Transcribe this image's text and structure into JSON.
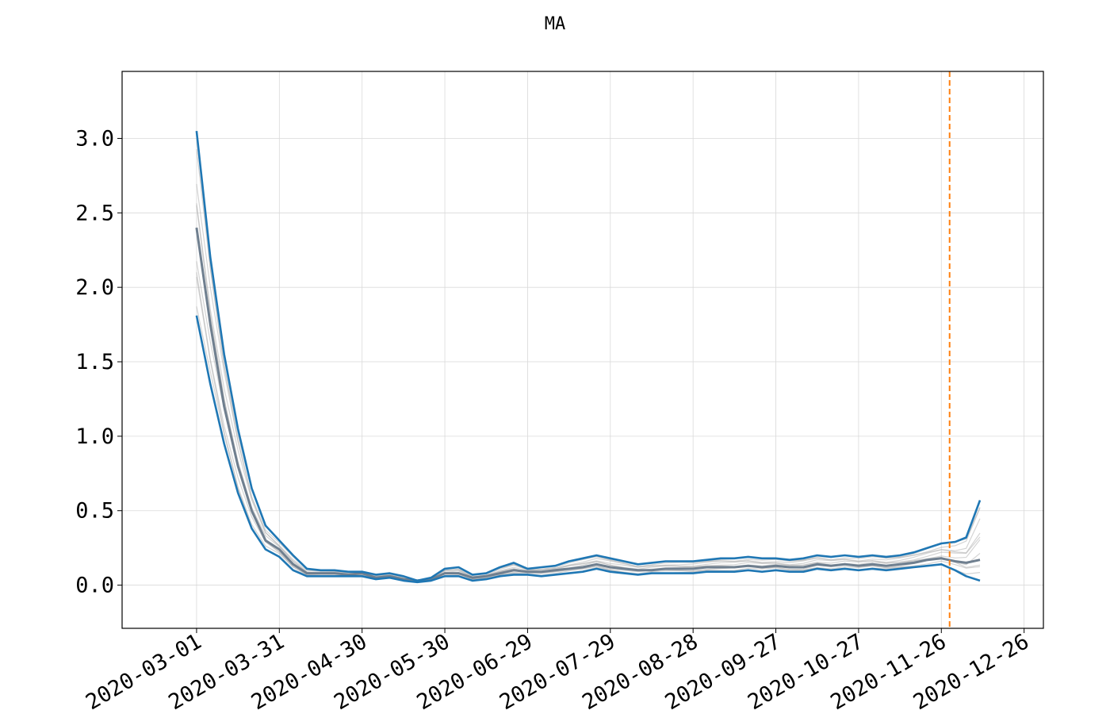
{
  "chart_data": {
    "type": "line",
    "title": "MA",
    "xlabel": "",
    "ylabel": "",
    "ylim": [
      -0.29,
      3.45
    ],
    "grid": true,
    "yticks": [
      "0.0",
      "0.5",
      "1.0",
      "1.5",
      "2.0",
      "2.5",
      "3.0"
    ],
    "xticks": [
      "2020-03-01",
      "2020-03-31",
      "2020-04-30",
      "2020-05-30",
      "2020-06-29",
      "2020-07-29",
      "2020-08-28",
      "2020-09-27",
      "2020-10-27",
      "2020-11-26",
      "2020-12-26"
    ],
    "xlim": [
      "2020-02-03",
      "2021-01-02"
    ],
    "vline": {
      "date": "2020-11-29",
      "color": "#ff7f0e",
      "style": "dashed"
    },
    "colors": {
      "band": "#1f77b4",
      "samples": "#b0b0b0",
      "vline": "#ff7f0e"
    },
    "x": [
      "2020-03-01",
      "2020-03-06",
      "2020-03-11",
      "2020-03-16",
      "2020-03-21",
      "2020-03-26",
      "2020-03-31",
      "2020-04-05",
      "2020-04-10",
      "2020-04-15",
      "2020-04-20",
      "2020-04-25",
      "2020-04-30",
      "2020-05-05",
      "2020-05-10",
      "2020-05-15",
      "2020-05-20",
      "2020-05-25",
      "2020-05-30",
      "2020-06-04",
      "2020-06-09",
      "2020-06-14",
      "2020-06-19",
      "2020-06-24",
      "2020-06-29",
      "2020-07-04",
      "2020-07-09",
      "2020-07-14",
      "2020-07-19",
      "2020-07-24",
      "2020-07-29",
      "2020-08-03",
      "2020-08-08",
      "2020-08-13",
      "2020-08-18",
      "2020-08-23",
      "2020-08-28",
      "2020-09-02",
      "2020-09-07",
      "2020-09-12",
      "2020-09-17",
      "2020-09-22",
      "2020-09-27",
      "2020-10-02",
      "2020-10-07",
      "2020-10-12",
      "2020-10-17",
      "2020-10-22",
      "2020-10-27",
      "2020-11-01",
      "2020-11-06",
      "2020-11-11",
      "2020-11-16",
      "2020-11-21",
      "2020-11-26",
      "2020-12-01",
      "2020-12-05",
      "2020-12-10"
    ],
    "series": [
      {
        "role": "upper",
        "values": [
          3.05,
          2.2,
          1.55,
          1.05,
          0.65,
          0.4,
          0.3,
          0.2,
          0.11,
          0.1,
          0.1,
          0.09,
          0.09,
          0.07,
          0.08,
          0.06,
          0.03,
          0.05,
          0.11,
          0.12,
          0.07,
          0.08,
          0.12,
          0.15,
          0.11,
          0.12,
          0.13,
          0.16,
          0.18,
          0.2,
          0.18,
          0.16,
          0.14,
          0.15,
          0.16,
          0.16,
          0.16,
          0.17,
          0.18,
          0.18,
          0.19,
          0.18,
          0.18,
          0.17,
          0.18,
          0.2,
          0.19,
          0.2,
          0.19,
          0.2,
          0.19,
          0.2,
          0.22,
          0.25,
          0.28,
          0.29,
          0.32,
          0.57
        ]
      },
      {
        "role": "median",
        "values": [
          2.4,
          1.75,
          1.2,
          0.8,
          0.5,
          0.3,
          0.24,
          0.14,
          0.08,
          0.08,
          0.08,
          0.07,
          0.08,
          0.05,
          0.06,
          0.04,
          0.03,
          0.04,
          0.08,
          0.08,
          0.05,
          0.06,
          0.08,
          0.1,
          0.09,
          0.09,
          0.1,
          0.11,
          0.12,
          0.14,
          0.12,
          0.11,
          0.1,
          0.1,
          0.11,
          0.11,
          0.11,
          0.12,
          0.12,
          0.12,
          0.13,
          0.12,
          0.13,
          0.12,
          0.12,
          0.14,
          0.13,
          0.14,
          0.13,
          0.14,
          0.13,
          0.14,
          0.15,
          0.17,
          0.18,
          0.16,
          0.15,
          0.17
        ]
      },
      {
        "role": "lower",
        "values": [
          1.81,
          1.35,
          0.95,
          0.62,
          0.38,
          0.24,
          0.19,
          0.1,
          0.06,
          0.06,
          0.06,
          0.06,
          0.06,
          0.04,
          0.05,
          0.03,
          0.02,
          0.03,
          0.06,
          0.06,
          0.03,
          0.04,
          0.06,
          0.07,
          0.07,
          0.06,
          0.07,
          0.08,
          0.09,
          0.11,
          0.09,
          0.08,
          0.07,
          0.08,
          0.08,
          0.08,
          0.08,
          0.09,
          0.09,
          0.09,
          0.1,
          0.09,
          0.1,
          0.09,
          0.09,
          0.11,
          0.1,
          0.11,
          0.1,
          0.11,
          0.1,
          0.11,
          0.12,
          0.13,
          0.14,
          0.1,
          0.06,
          0.03
        ]
      }
    ]
  }
}
